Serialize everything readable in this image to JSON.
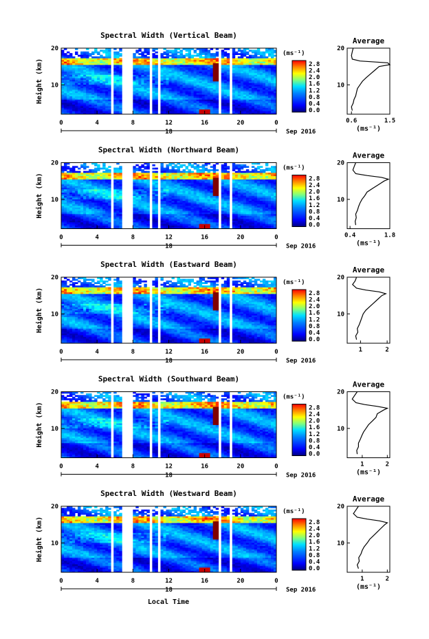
{
  "shared": {
    "xlabel": "Local Time",
    "ylabel": "Height (km)",
    "x_ticks": [
      "0",
      "4",
      "8",
      "12",
      "16",
      "20",
      "0"
    ],
    "date_text": "Sep 2016",
    "day_label": "18",
    "colorbar_unit": "(ms⁻¹)",
    "colorbar_ticks": [
      "0.0",
      "0.4",
      "0.8",
      "1.2",
      "1.6",
      "2.0",
      "2.4",
      "2.8"
    ],
    "profile_title": "Average",
    "profile_xlabel": "(ms⁻¹)",
    "y_ticks": [
      "20",
      "10"
    ]
  },
  "chart_data": [
    {
      "type": "heatmap",
      "title": "Spectral Width (Vertical Beam)",
      "xlabel": "Local Time",
      "ylabel": "Height (km)",
      "xlim": [
        0,
        24
      ],
      "ylim": [
        2,
        20
      ],
      "colorbar": {
        "label": "(ms⁻¹)",
        "range": [
          0.0,
          2.8
        ]
      },
      "gaps_hours": [
        [
          5.5,
          5.9
        ],
        [
          6.9,
          7.9
        ],
        [
          9.9,
          10.1
        ],
        [
          10.7,
          11.2
        ],
        [
          17.6,
          17.8
        ],
        [
          18.7,
          19.0
        ]
      ],
      "features": {
        "turbulence_patch": {
          "x": [
            16.8,
            17.8
          ],
          "y": [
            11,
            16
          ],
          "width": 2.8
        },
        "tropopause_km": 16.5
      },
      "profile": {
        "title": "Average",
        "xlabel": "(ms⁻¹)",
        "x_ticks": [
          "0.6",
          "1.5"
        ],
        "xlim": [
          0.5,
          1.5
        ],
        "heights": [
          3,
          4,
          5,
          6,
          7,
          8,
          9,
          10,
          11,
          12,
          13,
          14,
          15,
          15.5,
          16,
          16.5,
          17,
          18,
          19,
          20
        ],
        "values": [
          0.62,
          0.6,
          0.64,
          0.66,
          0.7,
          0.72,
          0.74,
          0.8,
          0.86,
          0.95,
          1.05,
          1.15,
          1.25,
          1.5,
          1.45,
          0.8,
          0.62,
          0.6,
          0.62,
          0.64
        ]
      }
    },
    {
      "type": "heatmap",
      "title": "Spectral Width (Northward Beam)",
      "xlabel": "Local Time",
      "ylabel": "Height (km)",
      "xlim": [
        0,
        24
      ],
      "ylim": [
        2,
        20
      ],
      "colorbar": {
        "label": "(ms⁻¹)",
        "range": [
          0.0,
          2.8
        ]
      },
      "gaps_hours": [
        [
          5.5,
          5.9
        ],
        [
          6.9,
          7.9
        ],
        [
          9.9,
          10.1
        ],
        [
          10.7,
          11.2
        ],
        [
          17.6,
          17.8
        ],
        [
          18.7,
          19.0
        ]
      ],
      "features": {
        "turbulence_patch": {
          "x": [
            16.8,
            17.8
          ],
          "y": [
            11,
            16
          ],
          "width": 2.8
        },
        "tropopause_km": 16.5
      },
      "profile": {
        "title": "Average",
        "xlabel": "(ms⁻¹)",
        "x_ticks": [
          "0.4",
          "1.8"
        ],
        "xlim": [
          0.3,
          1.8
        ],
        "heights": [
          3,
          4,
          5,
          6,
          7,
          8,
          9,
          10,
          11,
          12,
          13,
          14,
          15,
          15.5,
          16,
          16.5,
          17,
          18,
          19,
          20
        ],
        "values": [
          0.6,
          0.58,
          0.62,
          0.6,
          0.66,
          0.7,
          0.75,
          0.82,
          0.92,
          1.0,
          1.2,
          1.4,
          1.6,
          1.75,
          1.5,
          1.0,
          0.6,
          0.5,
          0.55,
          0.6
        ]
      }
    },
    {
      "type": "heatmap",
      "title": "Spectral Width (Eastward Beam)",
      "xlabel": "Local Time",
      "ylabel": "Height (km)",
      "xlim": [
        0,
        24
      ],
      "ylim": [
        2,
        20
      ],
      "colorbar": {
        "label": "(ms⁻¹)",
        "range": [
          0.0,
          2.8
        ]
      },
      "gaps_hours": [
        [
          5.5,
          5.9
        ],
        [
          6.9,
          7.9
        ],
        [
          9.9,
          10.1
        ],
        [
          10.7,
          11.2
        ],
        [
          17.6,
          17.8
        ],
        [
          18.7,
          19.0
        ]
      ],
      "features": {
        "turbulence_patch": {
          "x": [
            16.8,
            17.8
          ],
          "y": [
            11,
            16
          ],
          "width": 2.8
        },
        "tropopause_km": 16.5
      },
      "profile": {
        "title": "Average",
        "xlabel": "",
        "x_ticks": [
          "1",
          "2"
        ],
        "xlim": [
          0.5,
          2.1
        ],
        "heights": [
          3,
          4,
          5,
          6,
          7,
          8,
          9,
          10,
          11,
          12,
          13,
          14,
          15,
          15.5,
          16,
          16.5,
          17,
          18,
          19,
          20
        ],
        "values": [
          0.85,
          0.82,
          0.9,
          0.88,
          0.95,
          1.0,
          1.05,
          1.1,
          1.2,
          1.35,
          1.5,
          1.65,
          1.8,
          1.95,
          1.7,
          1.2,
          0.85,
          0.7,
          0.8,
          0.85
        ]
      }
    },
    {
      "type": "heatmap",
      "title": "Spectral Width (Southward Beam)",
      "xlabel": "Local Time",
      "ylabel": "Height (km)",
      "xlim": [
        0,
        24
      ],
      "ylim": [
        2,
        20
      ],
      "colorbar": {
        "label": "(ms⁻¹)",
        "range": [
          0.0,
          2.8
        ]
      },
      "gaps_hours": [
        [
          5.5,
          5.9
        ],
        [
          6.9,
          7.9
        ],
        [
          9.9,
          10.1
        ],
        [
          10.7,
          11.2
        ],
        [
          17.6,
          17.8
        ],
        [
          18.7,
          19.0
        ]
      ],
      "features": {
        "turbulence_patch": {
          "x": [
            16.8,
            17.8
          ],
          "y": [
            11,
            16
          ],
          "width": 2.8
        },
        "tropopause_km": 16.5
      },
      "profile": {
        "title": "Average",
        "xlabel": "(ms⁻¹)",
        "x_ticks": [
          "1",
          "2"
        ],
        "xlim": [
          0.4,
          2.1
        ],
        "heights": [
          3,
          4,
          5,
          6,
          7,
          8,
          9,
          10,
          11,
          12,
          13,
          14,
          15,
          15.5,
          16,
          16.5,
          17,
          18,
          19,
          20
        ],
        "values": [
          0.8,
          0.78,
          0.85,
          0.85,
          0.92,
          0.98,
          1.05,
          1.15,
          1.25,
          1.4,
          1.55,
          1.6,
          1.85,
          2.0,
          1.6,
          1.1,
          0.75,
          0.6,
          0.7,
          0.8
        ]
      }
    },
    {
      "type": "heatmap",
      "title": "Spectral Width (Westward Beam)",
      "xlabel": "Local Time",
      "ylabel": "Height (km)",
      "xlim": [
        0,
        24
      ],
      "ylim": [
        2,
        20
      ],
      "colorbar": {
        "label": "(ms⁻¹)",
        "range": [
          0.0,
          2.8
        ]
      },
      "gaps_hours": [
        [
          5.5,
          5.9
        ],
        [
          6.9,
          7.9
        ],
        [
          9.9,
          10.1
        ],
        [
          10.7,
          11.2
        ],
        [
          17.6,
          17.8
        ],
        [
          18.7,
          19.0
        ]
      ],
      "features": {
        "turbulence_patch": {
          "x": [
            16.8,
            17.8
          ],
          "y": [
            11,
            16
          ],
          "width": 2.8
        },
        "tropopause_km": 16.5
      },
      "profile": {
        "title": "Average",
        "xlabel": "(ms⁻¹)",
        "x_ticks": [
          "1",
          "2"
        ],
        "xlim": [
          0.4,
          2.1
        ],
        "heights": [
          3,
          4,
          5,
          6,
          7,
          8,
          9,
          10,
          11,
          12,
          13,
          14,
          15,
          15.5,
          16,
          16.5,
          17,
          18,
          19,
          20
        ],
        "values": [
          0.85,
          0.8,
          0.88,
          0.86,
          0.95,
          1.0,
          1.08,
          1.2,
          1.3,
          1.45,
          1.6,
          1.75,
          1.9,
          2.0,
          1.7,
          1.2,
          0.8,
          0.65,
          0.75,
          0.85
        ]
      }
    }
  ]
}
